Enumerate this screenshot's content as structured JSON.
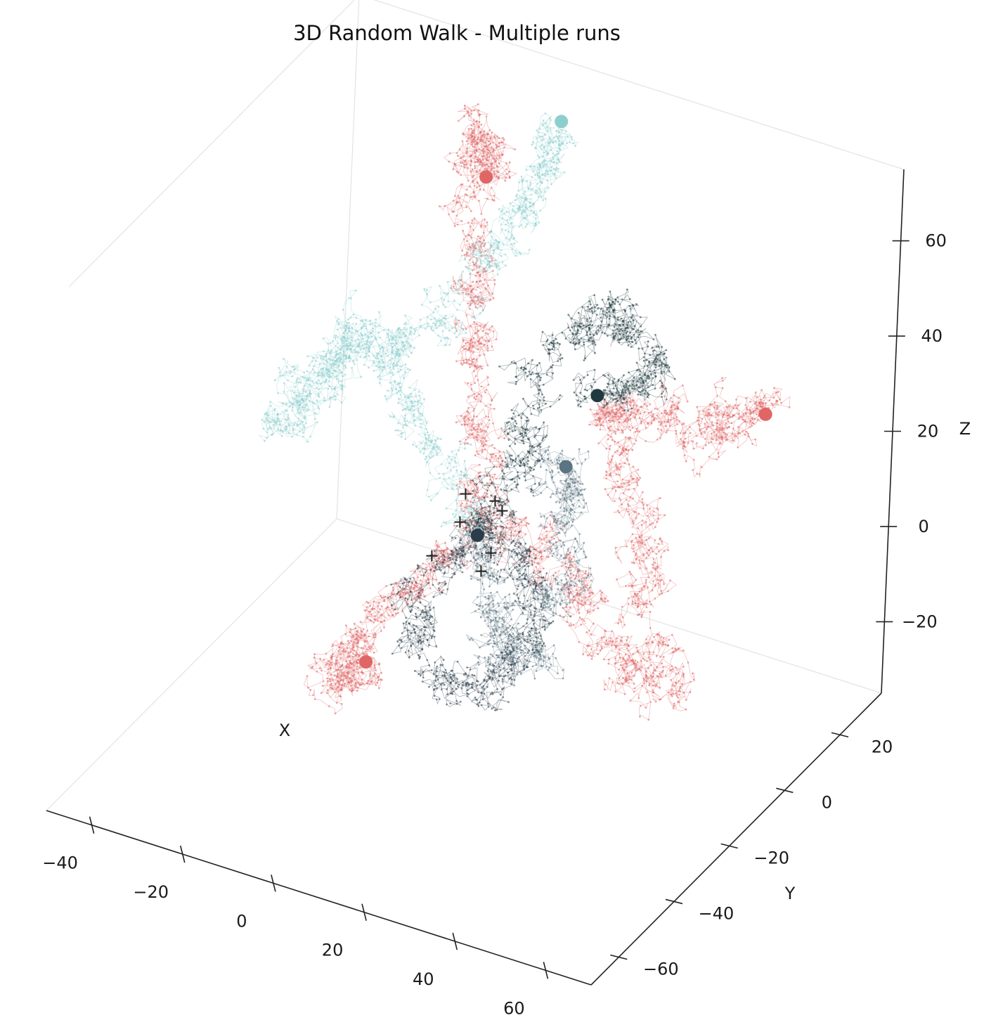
{
  "chart_data": {
    "type": "scatter",
    "projection": "3d",
    "title": "3D Random Walk - Multiple runs",
    "xlabel": "X",
    "ylabel": "Y",
    "zlabel": "Z",
    "xlim": [
      -50,
      70
    ],
    "ylim": [
      -70,
      35
    ],
    "zlim": [
      -35,
      75
    ],
    "x_ticks": [
      -40,
      -20,
      0,
      20,
      40,
      60
    ],
    "x_tick_labels": [
      "−40",
      "−20",
      "0",
      "20",
      "40",
      "60"
    ],
    "y_ticks": [
      -60,
      -40,
      -20,
      0,
      20
    ],
    "y_tick_labels": [
      "−60",
      "−40",
      "−20",
      "0",
      "20"
    ],
    "z_ticks": [
      -20,
      0,
      20,
      40,
      60
    ],
    "z_tick_labels": [
      "−20",
      "0",
      "20",
      "40",
      "60"
    ],
    "grid": false,
    "legend": "none",
    "series": [
      {
        "color": "#e06666",
        "start_marker": "+",
        "end_marker": "circle",
        "path": [
          [
            0,
            0,
            0
          ],
          [
            6,
            5,
            -3
          ],
          [
            12,
            8,
            -8
          ],
          [
            16,
            12,
            -14
          ],
          [
            20,
            10,
            -20
          ],
          [
            25,
            12,
            -26
          ],
          [
            30,
            10,
            -31
          ],
          [
            34,
            12,
            -33
          ],
          [
            31,
            18,
            -28
          ],
          [
            26,
            20,
            -22
          ],
          [
            24,
            26,
            -16
          ],
          [
            20,
            30,
            -10
          ],
          [
            14,
            32,
            -4
          ],
          [
            10,
            34,
            2
          ],
          [
            12,
            30,
            8
          ],
          [
            18,
            28,
            12
          ],
          [
            25,
            26,
            14
          ],
          [
            33,
            24,
            16
          ],
          [
            40,
            22,
            20
          ],
          [
            46,
            20,
            24
          ],
          [
            50,
            18,
            26
          ],
          [
            52,
            18,
            28
          ]
        ]
      },
      {
        "color": "#e06666",
        "start_marker": "+",
        "end_marker": "circle",
        "path": [
          [
            0,
            0,
            0
          ],
          [
            -2,
            6,
            6
          ],
          [
            -5,
            10,
            12
          ],
          [
            -8,
            14,
            18
          ],
          [
            -10,
            18,
            24
          ],
          [
            -13,
            20,
            30
          ],
          [
            -15,
            24,
            36
          ],
          [
            -18,
            28,
            42
          ],
          [
            -20,
            32,
            48
          ],
          [
            -22,
            34,
            54
          ],
          [
            -22,
            34,
            58
          ],
          [
            -20,
            33,
            52
          ],
          [
            -19,
            32,
            48
          ]
        ]
      },
      {
        "color": "#e06666",
        "start_marker": "+",
        "end_marker": "circle",
        "path": [
          [
            0,
            0,
            0
          ],
          [
            -4,
            -4,
            -6
          ],
          [
            -8,
            -8,
            -12
          ],
          [
            -12,
            -10,
            -17
          ],
          [
            -16,
            -12,
            -22
          ],
          [
            -20,
            -12,
            -26
          ],
          [
            -22,
            -10,
            -30
          ],
          [
            -20,
            -12,
            -33
          ],
          [
            -16,
            -14,
            -29
          ],
          [
            -13,
            -16,
            -24
          ]
        ]
      },
      {
        "color": "#8ecece",
        "start_marker": "+",
        "end_marker": "circle",
        "path": [
          [
            0,
            0,
            0
          ],
          [
            -6,
            2,
            6
          ],
          [
            -12,
            4,
            12
          ],
          [
            -18,
            6,
            16
          ],
          [
            -24,
            10,
            20
          ],
          [
            -28,
            12,
            24
          ],
          [
            -33,
            12,
            26
          ],
          [
            -37,
            10,
            22
          ],
          [
            -40,
            8,
            16
          ],
          [
            -43,
            8,
            11
          ],
          [
            -45,
            6,
            6
          ],
          [
            -46,
            6,
            4
          ],
          [
            -40,
            10,
            10
          ],
          [
            -32,
            14,
            16
          ],
          [
            -24,
            18,
            22
          ],
          [
            -18,
            22,
            30
          ],
          [
            -14,
            24,
            38
          ],
          [
            -10,
            26,
            44
          ],
          [
            -6,
            28,
            50
          ],
          [
            -3,
            30,
            56
          ],
          [
            -4,
            28,
            62
          ],
          [
            -2,
            30,
            66
          ]
        ]
      },
      {
        "color": "#5b7481",
        "start_marker": "+",
        "end_marker": "circle",
        "path": [
          [
            0,
            0,
            0
          ],
          [
            4,
            -4,
            -6
          ],
          [
            8,
            -6,
            -12
          ],
          [
            12,
            -8,
            -16
          ],
          [
            16,
            -10,
            -20
          ],
          [
            18,
            -10,
            -16
          ],
          [
            20,
            -6,
            -10
          ],
          [
            22,
            -2,
            -4
          ],
          [
            20,
            2,
            2
          ],
          [
            18,
            4,
            8
          ],
          [
            17,
            6,
            12
          ],
          [
            16,
            6,
            13
          ]
        ]
      },
      {
        "color": "#1f3a3f",
        "start_marker": "+",
        "end_marker": "circle",
        "path": [
          [
            0,
            0,
            0
          ],
          [
            4,
            6,
            4
          ],
          [
            6,
            10,
            10
          ],
          [
            4,
            14,
            16
          ],
          [
            2,
            18,
            22
          ],
          [
            6,
            22,
            28
          ],
          [
            10,
            24,
            32
          ],
          [
            16,
            24,
            34
          ],
          [
            22,
            22,
            34
          ],
          [
            26,
            20,
            30
          ],
          [
            24,
            18,
            26
          ],
          [
            20,
            16,
            24
          ],
          [
            17,
            15,
            23
          ]
        ]
      },
      {
        "color": "#2a3d4a",
        "start_marker": "+",
        "end_marker": "circle",
        "path": [
          [
            0,
            0,
            0
          ],
          [
            -4,
            -6,
            -6
          ],
          [
            -6,
            -10,
            -12
          ],
          [
            -2,
            -14,
            -18
          ],
          [
            4,
            -16,
            -22
          ],
          [
            10,
            -14,
            -26
          ],
          [
            14,
            -10,
            -24
          ],
          [
            16,
            -6,
            -18
          ],
          [
            14,
            -2,
            -10
          ],
          [
            10,
            -1,
            -4
          ],
          [
            6,
            0,
            0
          ],
          [
            2,
            -2,
            -1
          ]
        ]
      }
    ]
  }
}
